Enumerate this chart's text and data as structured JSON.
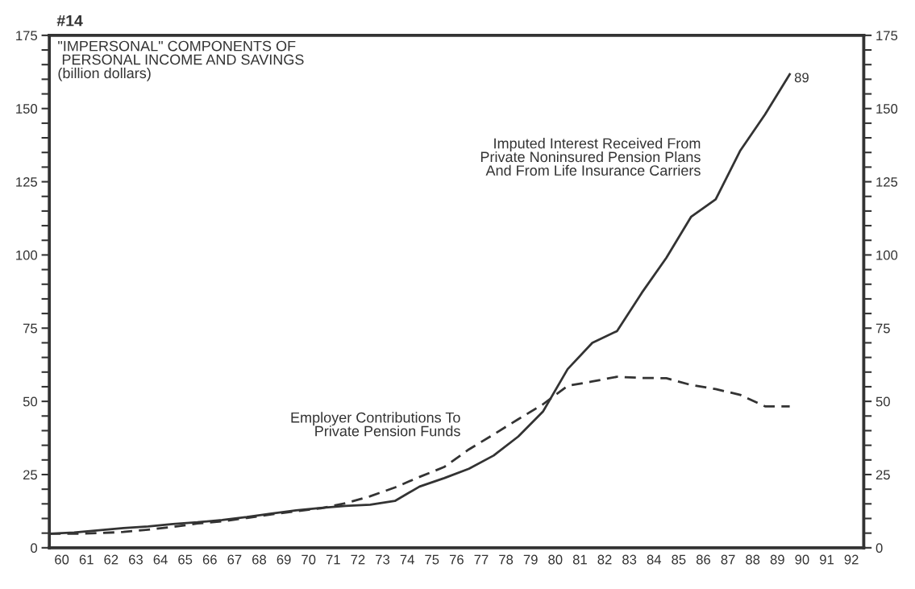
{
  "chart_data": {
    "type": "line",
    "title": "\"IMPERSONAL\" COMPONENTS OF\n PERSONAL INCOME AND SAVINGS\n(billion dollars)",
    "annotations": [
      "#14",
      {
        "text": "89",
        "x": 90,
        "y": 161.7
      }
    ],
    "x": [
      60,
      61,
      62,
      63,
      64,
      65,
      66,
      67,
      68,
      69,
      70,
      71,
      72,
      73,
      74,
      75,
      76,
      77,
      78,
      79,
      80,
      81,
      82,
      83,
      84,
      85,
      86,
      87,
      88,
      89,
      90
    ],
    "series": [
      {
        "name": "Imputed Interest Received From\nPrivate Noninsured Pension Plans\nAnd From Life Insurance Carriers",
        "color": "#333333",
        "line_style": "solid",
        "values": [
          4.8,
          5.2,
          6,
          6.7,
          7.3,
          8.1,
          8.7,
          9.5,
          10.5,
          11.7,
          12.8,
          13.6,
          14.3,
          14.7,
          16,
          20.9,
          23.8,
          27,
          31.5,
          38,
          46.5,
          61,
          70,
          74,
          87,
          99,
          113,
          119,
          135.7,
          148,
          161.7
        ]
      },
      {
        "name": "Employer Contributions To\nPrivate Pension Funds",
        "color": "#333333",
        "line_style": "dashed",
        "values": [
          4.8,
          4.8,
          5,
          5.4,
          6.2,
          7.1,
          8.3,
          9,
          10.2,
          11.4,
          12.5,
          13.5,
          15.2,
          17.6,
          20.6,
          24.2,
          27.6,
          33.6,
          38.7,
          43.9,
          49,
          55.3,
          56.8,
          58.4,
          58,
          57.9,
          55.6,
          54.2,
          52.2,
          48.3,
          48.3
        ]
      }
    ],
    "xlim": [
      60,
      93
    ],
    "xticks": [
      {
        "value": 60.5,
        "label": "60"
      },
      {
        "value": 61.5,
        "label": "61"
      },
      {
        "value": 62.5,
        "label": "62"
      },
      {
        "value": 63.5,
        "label": "63"
      },
      {
        "value": 64.5,
        "label": "64"
      },
      {
        "value": 65.5,
        "label": "65"
      },
      {
        "value": 66.5,
        "label": "66"
      },
      {
        "value": 67.5,
        "label": "67"
      },
      {
        "value": 68.5,
        "label": "68"
      },
      {
        "value": 69.5,
        "label": "69"
      },
      {
        "value": 70.5,
        "label": "70"
      },
      {
        "value": 71.5,
        "label": "71"
      },
      {
        "value": 72.5,
        "label": "72"
      },
      {
        "value": 73.5,
        "label": "73"
      },
      {
        "value": 74.5,
        "label": "74"
      },
      {
        "value": 75.5,
        "label": "75"
      },
      {
        "value": 76.5,
        "label": "76"
      },
      {
        "value": 77.5,
        "label": "77"
      },
      {
        "value": 78.5,
        "label": "78"
      },
      {
        "value": 79.5,
        "label": "79"
      },
      {
        "value": 80.5,
        "label": "80"
      },
      {
        "value": 81.5,
        "label": "81"
      },
      {
        "value": 82.5,
        "label": "82"
      },
      {
        "value": 83.5,
        "label": "83"
      },
      {
        "value": 84.5,
        "label": "84"
      },
      {
        "value": 85.5,
        "label": "85"
      },
      {
        "value": 86.5,
        "label": "86"
      },
      {
        "value": 87.5,
        "label": "87"
      },
      {
        "value": 88.5,
        "label": "88"
      },
      {
        "value": 89.5,
        "label": "89"
      },
      {
        "value": 90.5,
        "label": "90"
      },
      {
        "value": 91.5,
        "label": "91"
      },
      {
        "value": 92.5,
        "label": "92"
      }
    ],
    "ylim": [
      0,
      175
    ],
    "yticks": [
      0,
      {
        "value": 5,
        "label": null
      },
      {
        "value": 10,
        "label": null
      },
      {
        "value": 15,
        "label": null
      },
      {
        "value": 20,
        "label": null
      },
      25,
      {
        "value": 30,
        "label": null
      },
      {
        "value": 35,
        "label": null
      },
      {
        "value": 40,
        "label": null
      },
      {
        "value": 45,
        "label": null
      },
      50,
      {
        "value": 55,
        "label": null
      },
      {
        "value": 60,
        "label": null
      },
      {
        "value": 65,
        "label": null
      },
      {
        "value": 70,
        "label": null
      },
      75,
      {
        "value": 80,
        "label": null
      },
      {
        "value": 85,
        "label": null
      },
      {
        "value": 90,
        "label": null
      },
      {
        "value": 95,
        "label": null
      },
      100,
      {
        "value": 105,
        "label": null
      },
      {
        "value": 110,
        "label": null
      },
      {
        "value": 115,
        "label": null
      },
      {
        "value": 120,
        "label": null
      },
      125,
      {
        "value": 130,
        "label": null
      },
      {
        "value": 135,
        "label": null
      },
      {
        "value": 140,
        "label": null
      },
      {
        "value": 145,
        "label": null
      },
      150,
      {
        "value": 155,
        "label": null
      },
      {
        "value": 160,
        "label": null
      },
      {
        "value": 165,
        "label": null
      },
      {
        "value": 170,
        "label": null
      },
      175
    ],
    "y2lim": [
      0,
      175
    ],
    "y2ticks": [
      0,
      {
        "value": 5,
        "label": null
      },
      {
        "value": 10,
        "label": null
      },
      {
        "value": 15,
        "label": null
      },
      {
        "value": 20,
        "label": null
      },
      25,
      {
        "value": 30,
        "label": null
      },
      {
        "value": 35,
        "label": null
      },
      {
        "value": 40,
        "label": null
      },
      {
        "value": 45,
        "label": null
      },
      50,
      {
        "value": 55,
        "label": null
      },
      {
        "value": 60,
        "label": null
      },
      {
        "value": 65,
        "label": null
      },
      {
        "value": 70,
        "label": null
      },
      75,
      {
        "value": 80,
        "label": null
      },
      {
        "value": 85,
        "label": null
      },
      {
        "value": 90,
        "label": null
      },
      {
        "value": 95,
        "label": null
      },
      100,
      {
        "value": 105,
        "label": null
      },
      {
        "value": 110,
        "label": null
      },
      {
        "value": 115,
        "label": null
      },
      {
        "value": 120,
        "label": null
      },
      125,
      {
        "value": 130,
        "label": null
      },
      {
        "value": 135,
        "label": null
      },
      {
        "value": 140,
        "label": null
      },
      {
        "value": 145,
        "label": null
      },
      150,
      {
        "value": 155,
        "label": null
      },
      {
        "value": 160,
        "label": null
      },
      {
        "value": 165,
        "label": null
      },
      {
        "value": 170,
        "label": null
      },
      175
    ],
    "grid": false,
    "legend": false
  }
}
